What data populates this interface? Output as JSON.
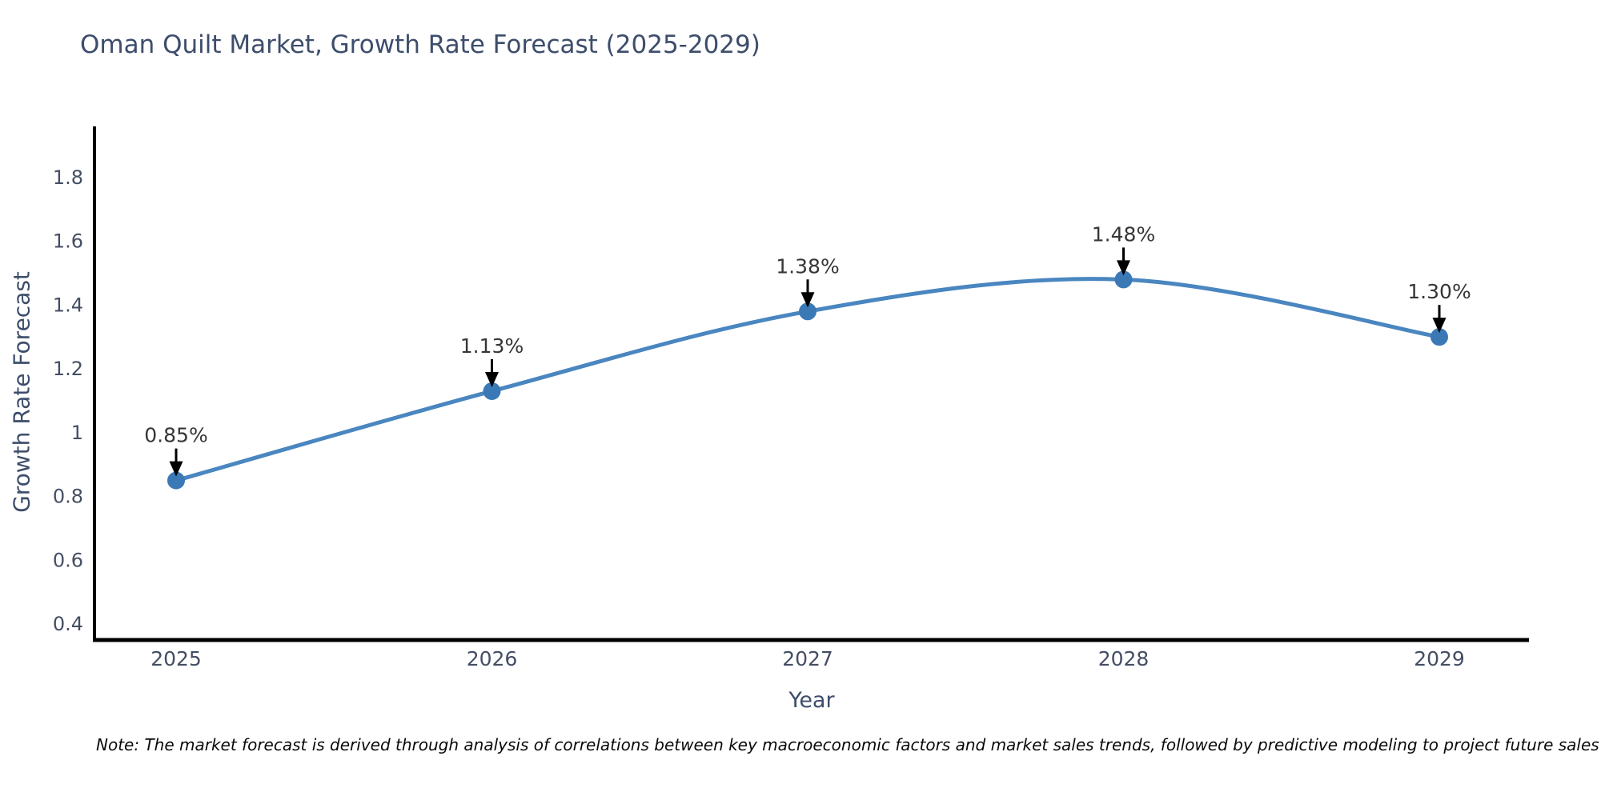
{
  "title": "Oman Quilt Market, Growth Rate Forecast (2025-2029)",
  "note": "Note: The market forecast is derived through analysis of correlations between key macroeconomic factors and market sales trends, followed by predictive modeling to project future sales",
  "chart_data": {
    "type": "line",
    "title": "Oman Quilt Market, Growth Rate Forecast (2025-2029)",
    "xlabel": "Year",
    "ylabel": "Growth Rate Forecast",
    "categories": [
      "2025",
      "2026",
      "2027",
      "2028",
      "2029"
    ],
    "values": [
      0.85,
      1.13,
      1.38,
      1.48,
      1.3
    ],
    "point_labels": [
      "0.85%",
      "1.13%",
      "1.38%",
      "1.48%",
      "1.30%"
    ],
    "ytick_values": [
      0.4,
      0.6,
      0.8,
      1.0,
      1.2,
      1.4,
      1.6,
      1.8
    ],
    "ytick_labels": [
      "0.4",
      "0.6",
      "0.8",
      "1",
      "1.2",
      "1.4",
      "1.6",
      "1.8"
    ],
    "ylim": [
      0.35,
      1.96
    ],
    "grid": false,
    "legend": null,
    "line_smooth": true,
    "annotation_style": "down-arrow",
    "colors": {
      "line": "#4a86c0",
      "marker": "#3a79b6",
      "arrow": "#000000",
      "axis": "#000000",
      "tick_text": "#444e63",
      "title_text": "#3d4d6b",
      "annotation_text": "#363636",
      "note_text": "#0a0a0a",
      "background": "#ffffff"
    }
  }
}
